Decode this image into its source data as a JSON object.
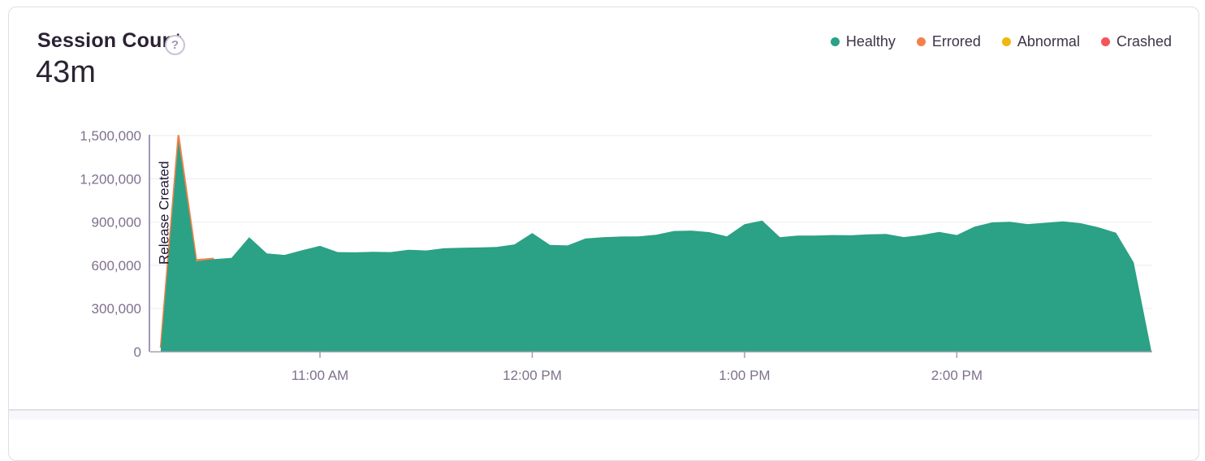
{
  "card": {
    "title": "Session Count",
    "help_icon": "?",
    "total": "43m"
  },
  "legend": {
    "items": [
      {
        "label": "Healthy",
        "color": "#2BA185"
      },
      {
        "label": "Errored",
        "color": "#F2824A"
      },
      {
        "label": "Abnormal",
        "color": "#F0B712"
      },
      {
        "label": "Crashed",
        "color": "#F55459"
      }
    ]
  },
  "chart_data": {
    "type": "area",
    "title": "Session Count",
    "total_label": "43m",
    "legend_position": "top-right",
    "grid": true,
    "ylim": [
      0,
      1500000
    ],
    "yticks": [
      {
        "value": 0,
        "label": "0"
      },
      {
        "value": 300000,
        "label": "300,000"
      },
      {
        "value": 600000,
        "label": "600,000"
      },
      {
        "value": 900000,
        "label": "900,000"
      },
      {
        "value": 1200000,
        "label": "1,200,000"
      },
      {
        "value": 1500000,
        "label": "1,500,000"
      }
    ],
    "xticks": [
      {
        "label": "11:00 AM",
        "index": 9
      },
      {
        "label": "12:00 PM",
        "index": 21
      },
      {
        "label": "1:00 PM",
        "index": 33
      },
      {
        "label": "2:00 PM",
        "index": 45
      }
    ],
    "annotation": {
      "label": "Release Created"
    },
    "series": [
      {
        "name": "Healthy",
        "color": "#2BA185",
        "values": [
          20000,
          1465000,
          628000,
          643000,
          652000,
          795000,
          682000,
          672000,
          705000,
          735000,
          692000,
          690000,
          694000,
          692000,
          708000,
          703000,
          718000,
          722000,
          724000,
          728000,
          745000,
          824000,
          742000,
          738000,
          786000,
          795000,
          800000,
          801000,
          812000,
          838000,
          841000,
          830000,
          801000,
          885000,
          910000,
          795000,
          806000,
          806000,
          810000,
          808000,
          815000,
          818000,
          796000,
          810000,
          832000,
          810000,
          868000,
          898000,
          902000,
          886000,
          895000,
          905000,
          892000,
          864000,
          826000,
          620000,
          5000
        ]
      },
      {
        "name": "Errored",
        "color": "#F2824A",
        "values": [
          5000,
          30000,
          5000,
          0,
          0,
          0,
          0,
          0,
          0,
          0,
          0,
          0,
          0,
          0,
          0,
          0,
          0,
          0,
          0,
          0,
          0,
          0,
          0,
          0,
          0,
          0,
          0,
          0,
          0,
          0,
          0,
          0,
          0,
          0,
          0,
          0,
          0,
          0,
          0,
          0,
          0,
          0,
          0,
          0,
          0,
          0,
          0,
          0,
          0,
          0,
          0,
          0,
          0,
          0,
          0,
          0,
          0
        ]
      }
    ]
  },
  "colors": {
    "title_text": "#2B2233",
    "axis_label": "#80708F",
    "legend_text": "#3E3446",
    "gridline": "#F2F0F5",
    "axis_line": "#A69BB3",
    "release_line": "#A096B9",
    "release_text": "#1F1633",
    "card_border": "#E0DCE6"
  }
}
